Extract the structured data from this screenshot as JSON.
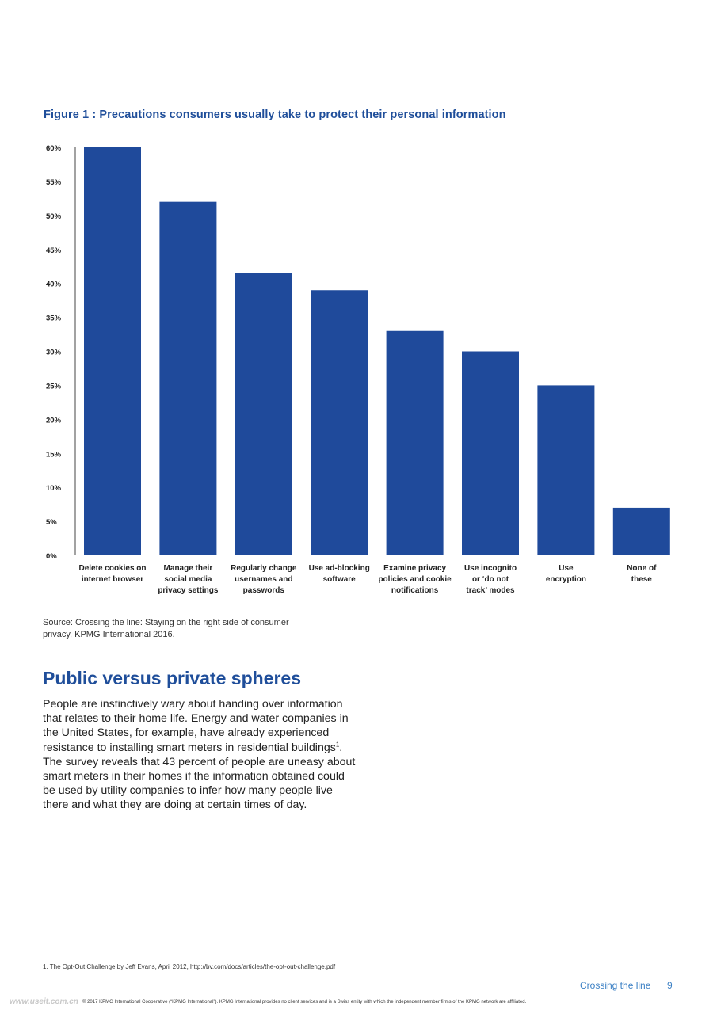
{
  "figure_title": "Figure 1 : Precautions consumers usually take to protect their personal information",
  "chart_data": {
    "type": "bar",
    "title": "Figure 1 : Precautions consumers usually take to protect their personal information",
    "xlabel": "",
    "ylabel": "",
    "ylim": [
      0,
      60
    ],
    "yticks": [
      "0%",
      "5%",
      "10%",
      "15%",
      "20%",
      "25%",
      "30%",
      "35%",
      "40%",
      "45%",
      "50%",
      "55%",
      "60%"
    ],
    "categories": [
      [
        "Delete cookies on",
        "internet browser"
      ],
      [
        "Manage their",
        "social media",
        "privacy settings"
      ],
      [
        "Regularly change",
        "usernames and",
        "passwords"
      ],
      [
        "Use ad-blocking",
        "software"
      ],
      [
        "Examine privacy",
        "policies and cookie",
        "notifications"
      ],
      [
        "Use incognito",
        "or ‘do not",
        "track’ modes"
      ],
      [
        "Use",
        "encryption"
      ],
      [
        "None of",
        "these"
      ]
    ],
    "values": [
      60,
      52,
      41.5,
      39,
      33,
      30,
      25,
      7
    ],
    "grid": false,
    "legend": "none",
    "bar_color": "#1f4a9b"
  },
  "source_text": "Source: Crossing the line: Staying on the right side of consumer privacy, KPMG International 2016.",
  "section_heading": "Public versus private spheres",
  "body_before_ref": "People are instinctively wary about handing over information that relates to their home life. Energy and water companies in the United States, for example, have already experienced resistance to installing smart meters in residential buildings",
  "footnote_ref": "1",
  "body_after_ref": ". The survey reveals that 43 percent of people are uneasy about smart meters in their homes if the information obtained could be used by utility companies to infer how many people live there and what they are doing at certain times of day.",
  "footnote": "1. The Opt-Out Challenge by Jeff Evans, April 2012, http://bv.com/docs/articles/the-opt-out-challenge.pdf",
  "footer": {
    "title": "Crossing the line",
    "page_number": "9",
    "copyright": "© 2017 KPMG International Cooperative (“KPMG International”). KPMG International provides no client services and is a Swiss entity with which the independent member firms of the KPMG network are affiliated.",
    "watermark": "www.useit.com.cn"
  }
}
